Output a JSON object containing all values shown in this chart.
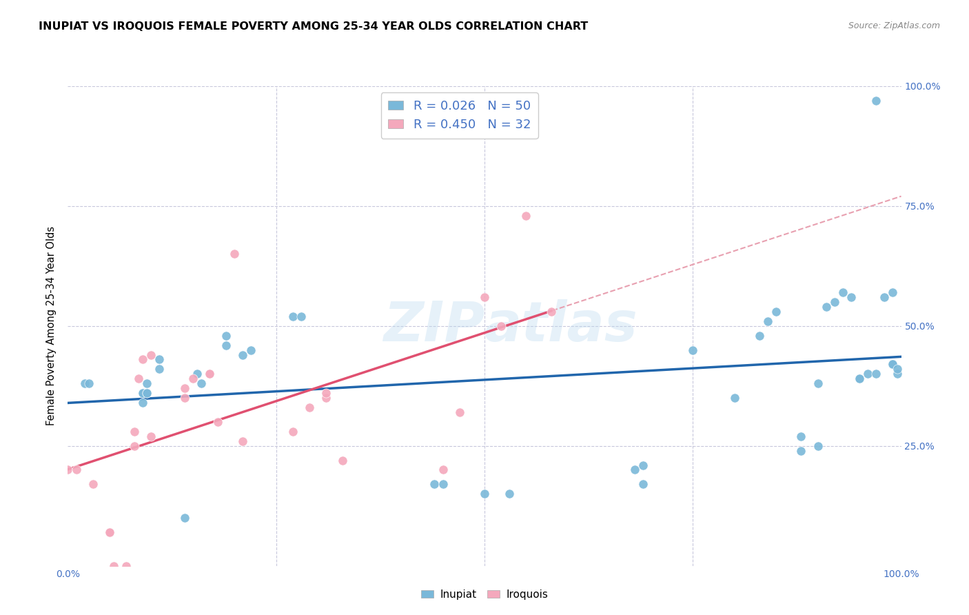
{
  "title": "INUPIAT VS IROQUOIS FEMALE POVERTY AMONG 25-34 YEAR OLDS CORRELATION CHART",
  "source_text": "Source: ZipAtlas.com",
  "ylabel": "Female Poverty Among 25-34 Year Olds",
  "xlabel": "",
  "inupiat_R": 0.026,
  "inupiat_N": 50,
  "iroquois_R": 0.45,
  "iroquois_N": 32,
  "inupiat_color": "#7ab8d9",
  "iroquois_color": "#f4a8bc",
  "inupiat_line_color": "#2166ac",
  "iroquois_line_color": "#e05070",
  "iroquois_trend_dashed_color": "#e8a0b0",
  "background_color": "#ffffff",
  "grid_color": "#c8c8dc",
  "xlim": [
    0,
    1
  ],
  "ylim": [
    0,
    1
  ],
  "inupiat_x": [
    0.02,
    0.025,
    0.09,
    0.09,
    0.095,
    0.095,
    0.095,
    0.09,
    0.11,
    0.11,
    0.14,
    0.155,
    0.16,
    0.19,
    0.19,
    0.21,
    0.22,
    0.27,
    0.28,
    0.44,
    0.45,
    0.5,
    0.53,
    0.68,
    0.69,
    0.69,
    0.75,
    0.8,
    0.83,
    0.84,
    0.85,
    0.88,
    0.88,
    0.9,
    0.9,
    0.91,
    0.92,
    0.93,
    0.94,
    0.95,
    0.95,
    0.96,
    0.97,
    0.97,
    0.98,
    0.99,
    0.99,
    0.99,
    0.995,
    0.995
  ],
  "inupiat_y": [
    0.38,
    0.38,
    0.36,
    0.36,
    0.38,
    0.36,
    0.36,
    0.34,
    0.41,
    0.43,
    0.1,
    0.4,
    0.38,
    0.46,
    0.48,
    0.44,
    0.45,
    0.52,
    0.52,
    0.17,
    0.17,
    0.15,
    0.15,
    0.2,
    0.21,
    0.17,
    0.45,
    0.35,
    0.48,
    0.51,
    0.53,
    0.24,
    0.27,
    0.25,
    0.38,
    0.54,
    0.55,
    0.57,
    0.56,
    0.39,
    0.39,
    0.4,
    0.4,
    0.97,
    0.56,
    0.57,
    0.42,
    0.42,
    0.4,
    0.41
  ],
  "iroquois_x": [
    0.0,
    0.01,
    0.03,
    0.05,
    0.05,
    0.055,
    0.07,
    0.08,
    0.08,
    0.085,
    0.09,
    0.1,
    0.1,
    0.14,
    0.14,
    0.15,
    0.17,
    0.17,
    0.18,
    0.2,
    0.21,
    0.27,
    0.29,
    0.31,
    0.31,
    0.33,
    0.45,
    0.47,
    0.5,
    0.52,
    0.55,
    0.58
  ],
  "iroquois_y": [
    0.2,
    0.2,
    0.17,
    0.07,
    0.07,
    0.0,
    0.0,
    0.25,
    0.28,
    0.39,
    0.43,
    0.44,
    0.27,
    0.35,
    0.37,
    0.39,
    0.4,
    0.4,
    0.3,
    0.65,
    0.26,
    0.28,
    0.33,
    0.35,
    0.36,
    0.22,
    0.2,
    0.32,
    0.56,
    0.5,
    0.73,
    0.53
  ],
  "watermark_part1": "ZIP",
  "watermark_part2": "atlas",
  "legend_R_N_color": "#4472c4",
  "tick_color": "#4472c4",
  "title_fontsize": 11.5,
  "source_fontsize": 9
}
